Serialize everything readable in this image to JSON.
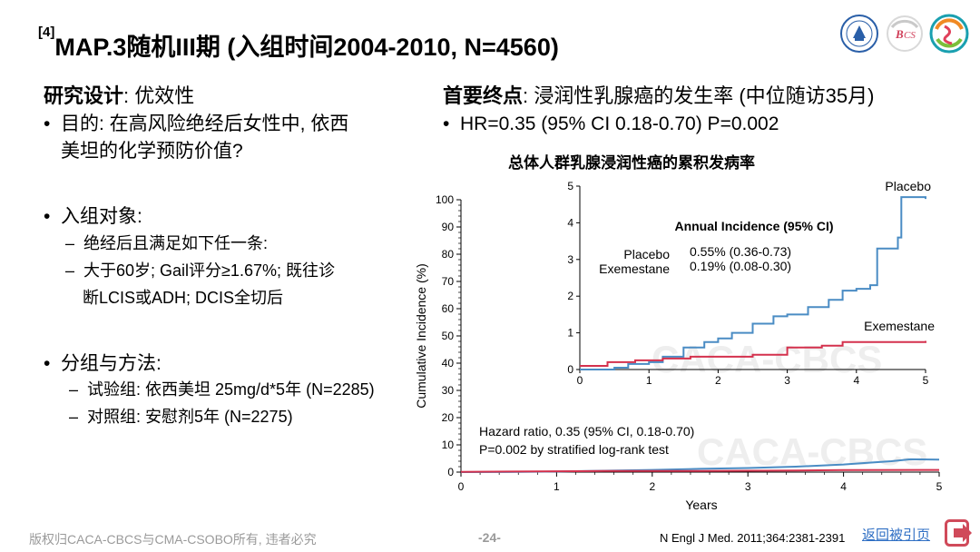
{
  "slide": {
    "ref": "[4]",
    "title": "MAP.3随机III期 (入组时间2004-2010, N=4560)"
  },
  "left": {
    "design_label": "研究设计",
    "design_value": ": 优效性",
    "purpose_1": "目的: 在高风险绝经后女性中, 依西",
    "purpose_2": "美坦的化学预防价值?",
    "population": "入组对象:",
    "population_items": [
      "绝经后且满足如下任一条:",
      "大于60岁; Gail评分≥1.67%; 既往诊",
      "断LCIS或ADH; DCIS全切后"
    ],
    "groups": "分组与方法:",
    "group_items": [
      "试验组: 依西美坦 25mg/d*5年 (N=2285)",
      "对照组: 安慰剂5年 (N=2275)"
    ]
  },
  "right": {
    "endpoint_label": "首要终点",
    "endpoint_value": ": 浸润性乳腺癌的发生率 (中位随访35月)",
    "result": "HR=0.35 (95% CI 0.18-0.70) P=0.002"
  },
  "footer": {
    "copyright": "版权归CACA-CBCS与CMA-CSOBO所有, 违者必究",
    "page": "-24-",
    "citation": "N Engl J Med. 2011;364:2381-2391",
    "back_link": "返回被引页"
  },
  "colors": {
    "placebo": "#4a8cc4",
    "exemestane": "#d4314d",
    "back_icon": "#d04a5a"
  },
  "chart_data": {
    "type": "line",
    "title": "总体人群乳腺浸润性癌的累积发病率",
    "xlabel": "Years",
    "ylabel": "Cumulative Incidence (%)",
    "xlim": [
      0,
      5
    ],
    "ylim": [
      0,
      100
    ],
    "x_ticks": [
      "0",
      "1",
      "2",
      "3",
      "4",
      "5"
    ],
    "y_ticks": [
      "0",
      "10",
      "20",
      "30",
      "40",
      "50",
      "60",
      "70",
      "80",
      "90",
      "100"
    ],
    "series": [
      {
        "name": "Placebo",
        "color": "#4a8cc4",
        "points": [
          [
            0,
            0
          ],
          [
            0.5,
            0.05
          ],
          [
            1,
            0.2
          ],
          [
            1.5,
            0.5
          ],
          [
            2,
            0.8
          ],
          [
            2.5,
            1.2
          ],
          [
            3,
            1.5
          ],
          [
            3.5,
            2.0
          ],
          [
            4,
            2.8
          ],
          [
            4.2,
            3.3
          ],
          [
            4.5,
            4.0
          ],
          [
            4.7,
            4.7
          ],
          [
            5,
            4.6
          ]
        ]
      },
      {
        "name": "Exemestane",
        "color": "#d4314d",
        "points": [
          [
            0,
            0.1
          ],
          [
            0.5,
            0.2
          ],
          [
            1,
            0.3
          ],
          [
            1.5,
            0.4
          ],
          [
            2,
            0.4
          ],
          [
            2.5,
            0.4
          ],
          [
            3,
            0.5
          ],
          [
            3.5,
            0.6
          ],
          [
            4,
            0.75
          ],
          [
            5,
            0.8
          ]
        ]
      }
    ],
    "annotation": [
      "Hazard ratio, 0.35 (95% CI, 0.18-0.70)",
      "P=0.002 by stratified log-rank test"
    ],
    "watermark": "CACA-CBCS",
    "inset": {
      "xlim": [
        0,
        5
      ],
      "ylim": [
        0,
        5
      ],
      "x_ticks": [
        "0",
        "1",
        "2",
        "3",
        "4",
        "5"
      ],
      "y_ticks": [
        "0",
        "1",
        "2",
        "3",
        "4",
        "5"
      ],
      "table_title": "Annual Incidence (95% CI)",
      "table_rows": [
        {
          "label": "Placebo",
          "value": "0.55% (0.36-0.73)"
        },
        {
          "label": "Exemestane",
          "value": "0.19% (0.08-0.30)"
        }
      ],
      "series": [
        {
          "name": "Placebo",
          "color": "#4a8cc4",
          "points": [
            [
              0,
              0
            ],
            [
              0.5,
              0.05
            ],
            [
              0.7,
              0.15
            ],
            [
              1,
              0.2
            ],
            [
              1.2,
              0.35
            ],
            [
              1.5,
              0.6
            ],
            [
              1.8,
              0.75
            ],
            [
              2,
              0.85
            ],
            [
              2.2,
              1.0
            ],
            [
              2.5,
              1.25
            ],
            [
              2.8,
              1.45
            ],
            [
              3,
              1.5
            ],
            [
              3.3,
              1.7
            ],
            [
              3.6,
              1.9
            ],
            [
              3.8,
              2.15
            ],
            [
              4,
              2.2
            ],
            [
              4.2,
              2.3
            ],
            [
              4.3,
              3.3
            ],
            [
              4.6,
              3.6
            ],
            [
              4.65,
              4.7
            ],
            [
              5,
              4.65
            ]
          ]
        },
        {
          "name": "Exemestane",
          "color": "#d4314d",
          "points": [
            [
              0,
              0.1
            ],
            [
              0.4,
              0.2
            ],
            [
              0.8,
              0.25
            ],
            [
              1.2,
              0.3
            ],
            [
              1.6,
              0.35
            ],
            [
              2.0,
              0.35
            ],
            [
              2.5,
              0.4
            ],
            [
              2.9,
              0.4
            ],
            [
              3.0,
              0.6
            ],
            [
              3.5,
              0.65
            ],
            [
              3.8,
              0.75
            ],
            [
              4.0,
              0.75
            ],
            [
              5,
              0.78
            ]
          ]
        }
      ]
    }
  }
}
